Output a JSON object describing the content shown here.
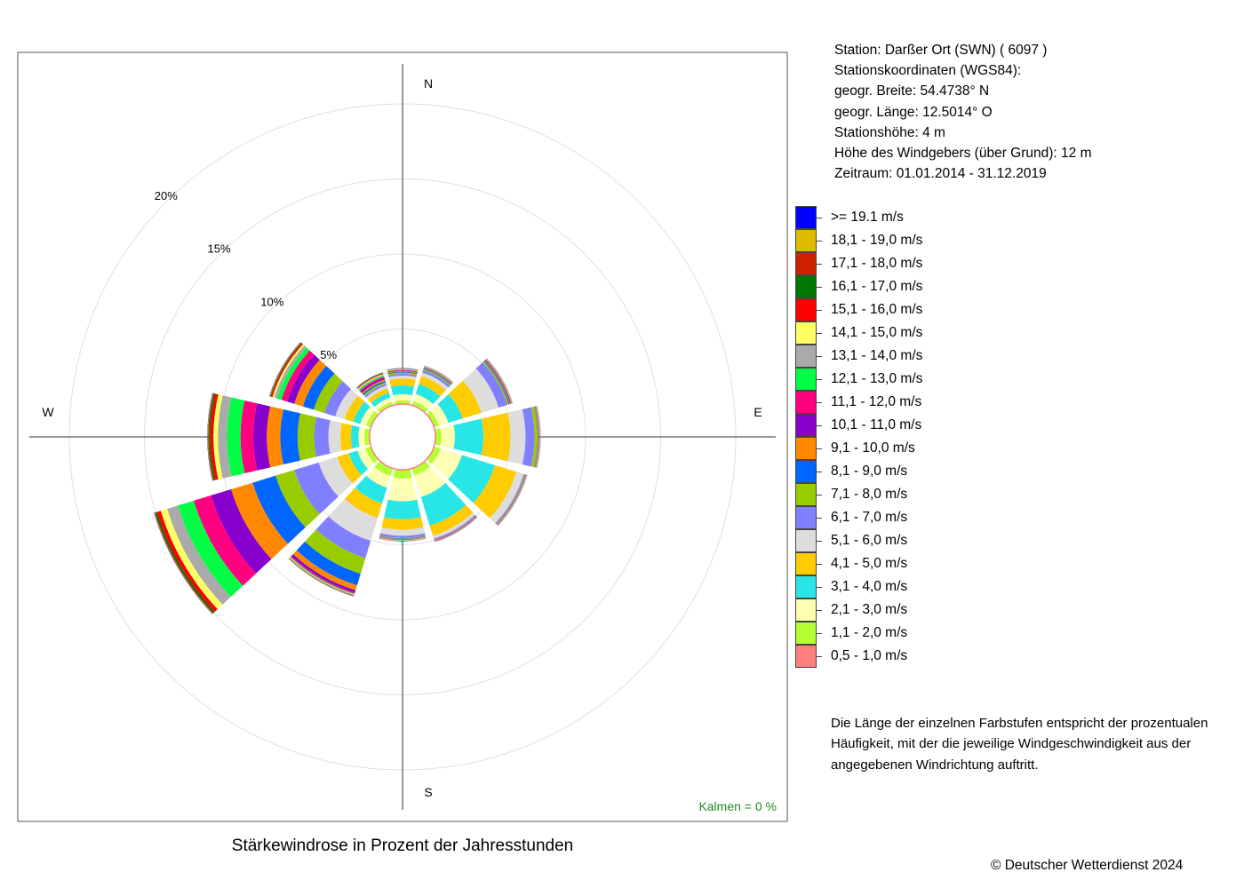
{
  "title": "Stärkewindrose in Prozent der Jahresstunden",
  "station_info": [
    "Station:  Darßer Ort (SWN)  ( 6097 )",
    "Stationskoordinaten (WGS84):",
    "geogr. Breite: 54.4738° N",
    "geogr. Länge: 12.5014° O",
    "Stationshöhe: 4 m",
    "Höhe des Windgebers (über Grund): 12 m",
    "Zeitraum: 01.01.2014 - 31.12.2019"
  ],
  "note": "Die Länge der einzelnen Farbstufen entspricht der prozentualen Häufigkeit, mit der die jeweilige Windgeschwindigkeit aus der angegebenen Windrichtung auftritt.",
  "calm": "Kalmen  =  0 %",
  "copyright": "© Deutscher Wetterdienst  2024",
  "calm_color": "#228b22",
  "chart_data": {
    "type": "wind-rose",
    "directions": [
      "N",
      "NNE",
      "ENE",
      "E",
      "ESE",
      "SSE",
      "S",
      "SSW",
      "WSW",
      "W",
      "WNW",
      "NNW"
    ],
    "direction_angles_deg": [
      0,
      30,
      60,
      90,
      120,
      150,
      180,
      210,
      240,
      270,
      300,
      330
    ],
    "cardinal_labels": [
      "N",
      "E",
      "S",
      "W"
    ],
    "radial_axis": {
      "unit": "%",
      "rmax": 20,
      "ticks": [
        5,
        10,
        15,
        20
      ],
      "tick_labels": [
        "5%",
        "10%",
        "15%",
        "20%"
      ]
    },
    "speed_classes": [
      {
        "label": "0,5 - 1,0 m/s",
        "color": "#ff7f7f"
      },
      {
        "label": "1,1 - 2,0 m/s",
        "color": "#b3ff33"
      },
      {
        "label": "2,1 - 3,0 m/s",
        "color": "#ffffb3"
      },
      {
        "label": "3,1 - 4,0 m/s",
        "color": "#29e6e6"
      },
      {
        "label": "4,1 - 5,0 m/s",
        "color": "#ffcc00"
      },
      {
        "label": "5,1 - 6,0 m/s",
        "color": "#dddddd"
      },
      {
        "label": "6,1 - 7,0 m/s",
        "color": "#7f7fff"
      },
      {
        "label": "7,1 - 8,0 m/s",
        "color": "#99cc00"
      },
      {
        "label": "8,1 - 9,0 m/s",
        "color": "#0066ff"
      },
      {
        "label": "9,1 - 10,0 m/s",
        "color": "#ff8800"
      },
      {
        "label": "10,1 - 11,0 m/s",
        "color": "#8800cc"
      },
      {
        "label": "11,1 - 12,0 m/s",
        "color": "#ff0080"
      },
      {
        "label": "12,1 - 13,0 m/s",
        "color": "#00ff44"
      },
      {
        "label": "13,1 - 14,0 m/s",
        "color": "#aaaaaa"
      },
      {
        "label": "14,1 - 15,0 m/s",
        "color": "#ffff66"
      },
      {
        "label": "15,1 - 16,0 m/s",
        "color": "#ff0000"
      },
      {
        "label": "16,1 - 17,0 m/s",
        "color": "#007700"
      },
      {
        "label": "17,1 - 18,0 m/s",
        "color": "#cc2200"
      },
      {
        "label": "18,1 - 19,0 m/s",
        "color": "#ddbb00"
      },
      {
        "label": ">= 19.1 m/s",
        "color": "#0000ff"
      }
    ],
    "frequencies_percent": [
      [
        0.05,
        0.2,
        0.4,
        0.6,
        0.45,
        0.2,
        0.12,
        0.08,
        0.05,
        0.05,
        0.04,
        0.03,
        0.03,
        0.02,
        0.02,
        0.02,
        0.01,
        0.01,
        0.01,
        0.01
      ],
      [
        0.05,
        0.25,
        0.5,
        0.7,
        0.55,
        0.25,
        0.15,
        0.08,
        0.05,
        0.04,
        0.03,
        0.02,
        0.02,
        0.02,
        0.01,
        0.01,
        0.01,
        0.01,
        0.01,
        0.01
      ],
      [
        0.05,
        0.3,
        0.65,
        1.0,
        1.3,
        1.2,
        0.6,
        0.1,
        0.06,
        0.05,
        0.04,
        0.03,
        0.02,
        0.02,
        0.01,
        0.01,
        0.01,
        0.01,
        0.01,
        0.01
      ],
      [
        0.05,
        0.35,
        0.9,
        1.9,
        1.8,
        1.0,
        0.6,
        0.2,
        0.03,
        0.03,
        0.02,
        0.02,
        0.02,
        0.02,
        0.01,
        0.01,
        0.01,
        0.01,
        0.01,
        0.01
      ],
      [
        0.05,
        0.4,
        1.5,
        2.3,
        1.5,
        0.5,
        0.05,
        0.03,
        0.02,
        0.02,
        0.02,
        0.02,
        0.02,
        0.01,
        0.01,
        0.01,
        0.01,
        0.01,
        0.01,
        0.01
      ],
      [
        0.05,
        0.45,
        1.5,
        2.0,
        0.7,
        0.2,
        0.05,
        0.02,
        0.02,
        0.02,
        0.02,
        0.02,
        0.01,
        0.01,
        0.01,
        0.01,
        0.01,
        0.01,
        0.01,
        0.01
      ],
      [
        0.05,
        0.55,
        1.5,
        1.2,
        0.7,
        0.4,
        0.15,
        0.04,
        0.03,
        0.02,
        0.02,
        0.02,
        0.02,
        0.02,
        0.01,
        0.01,
        0.01,
        0.01,
        0.01,
        0.01
      ],
      [
        0.05,
        0.5,
        0.8,
        1.1,
        1.0,
        1.6,
        1.2,
        1.1,
        0.8,
        0.35,
        0.15,
        0.08,
        0.05,
        0.04,
        0.03,
        0.02,
        0.02,
        0.02,
        0.01,
        0.01
      ],
      [
        0.05,
        0.35,
        0.55,
        0.6,
        0.8,
        1.3,
        1.7,
        1.3,
        1.6,
        1.5,
        1.4,
        1.2,
        1.1,
        0.75,
        0.45,
        0.25,
        0.12,
        0.06,
        0.03,
        0.02
      ],
      [
        0.05,
        0.3,
        0.4,
        0.5,
        0.7,
        0.8,
        0.95,
        1.1,
        1.15,
        0.9,
        0.9,
        0.85,
        0.9,
        0.6,
        0.3,
        0.2,
        0.1,
        0.06,
        0.03,
        0.02
      ],
      [
        0.05,
        0.3,
        0.4,
        0.5,
        0.6,
        0.65,
        0.75,
        0.75,
        0.75,
        0.6,
        0.5,
        0.4,
        0.3,
        0.2,
        0.12,
        0.08,
        0.05,
        0.04,
        0.03,
        0.02
      ],
      [
        0.05,
        0.2,
        0.3,
        0.35,
        0.3,
        0.2,
        0.12,
        0.1,
        0.1,
        0.1,
        0.1,
        0.08,
        0.08,
        0.06,
        0.05,
        0.04,
        0.03,
        0.02,
        0.02,
        0.01
      ]
    ],
    "grid": true
  }
}
